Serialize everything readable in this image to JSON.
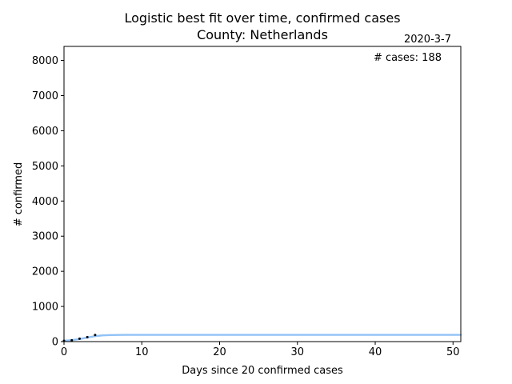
{
  "chart_data": {
    "type": "line",
    "title": "Logistic best fit over time, confirmed cases",
    "subtitle": "County: Netherlands",
    "date_label": "2020-3-7",
    "cases_annotation": "# cases: 188",
    "xlabel": "Days since 20 confirmed cases",
    "ylabel": "# confirmed",
    "xlim": [
      0,
      51
    ],
    "ylim": [
      0,
      8400
    ],
    "xticks": [
      0,
      10,
      20,
      30,
      40,
      50
    ],
    "yticks": [
      0,
      1000,
      2000,
      3000,
      4000,
      5000,
      6000,
      7000,
      8000
    ],
    "grid": false,
    "fit_curve": {
      "color": "#90c2f6",
      "x": [
        0,
        1,
        2,
        3,
        4,
        5,
        6,
        7,
        8,
        10,
        15,
        20,
        30,
        40,
        51
      ],
      "y": [
        24,
        42,
        73,
        115,
        155,
        178,
        187,
        190,
        191,
        191,
        191,
        191,
        191,
        191,
        191
      ]
    },
    "observed": {
      "color": "#000000",
      "x": [
        0,
        1,
        2,
        3,
        4
      ],
      "y": [
        24,
        38,
        82,
        128,
        188
      ]
    }
  }
}
